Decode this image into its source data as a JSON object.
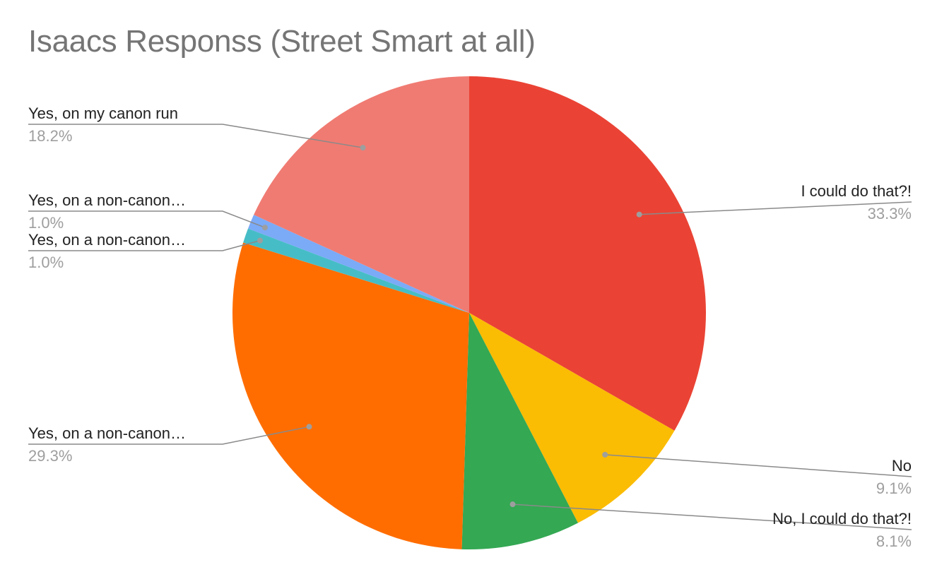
{
  "chart_data": {
    "type": "pie",
    "title": "Isaacs Responss (Street Smart at all)",
    "slices": [
      {
        "label": "I could do that?!",
        "value": 33.3,
        "display": "33.3%",
        "color": "#ea4335"
      },
      {
        "label": "No",
        "value": 9.1,
        "display": "9.1%",
        "color": "#fbbc04"
      },
      {
        "label": "No, I could do that?!",
        "value": 8.1,
        "display": "8.1%",
        "color": "#34a853"
      },
      {
        "label": "Yes, on a non-canon…",
        "value": 29.3,
        "display": "29.3%",
        "color": "#ff6d01"
      },
      {
        "label": "Yes, on a non-canon…",
        "value": 1.0,
        "display": "1.0%",
        "color": "#46bdc6"
      },
      {
        "label": "Yes, on a non-canon…",
        "value": 1.0,
        "display": "1.0%",
        "color": "#7baaf7"
      },
      {
        "label": "Yes, on my canon run",
        "value": 18.2,
        "display": "18.2%",
        "color": "#f07b72"
      }
    ],
    "start_angle": "12 o'clock",
    "direction": "clockwise",
    "legend": "none"
  }
}
